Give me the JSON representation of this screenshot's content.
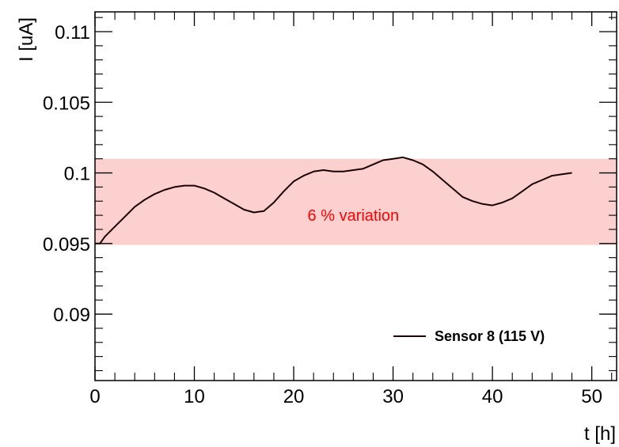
{
  "chart_data": {
    "type": "line",
    "xlabel": "t [h]",
    "ylabel": "I [uA]",
    "xlim": [
      0,
      52.5
    ],
    "ylim": [
      0.0853,
      0.1114
    ],
    "x_ticks": [
      0,
      10,
      20,
      30,
      40,
      50
    ],
    "x_tick_labels": [
      "0",
      "10",
      "20",
      "30",
      "40",
      "50"
    ],
    "y_ticks": [
      0.09,
      0.095,
      0.1,
      0.105,
      0.11
    ],
    "y_tick_labels": [
      "0.09",
      "0.095",
      "0.1",
      "0.105",
      "0.11"
    ],
    "grid": false,
    "legend_position": "lower-right",
    "band": {
      "y_from": 0.0949,
      "y_to": 0.101,
      "color": "#fdd0d0",
      "label": "6 % variation",
      "label_color": "#ff0000",
      "label_x": 26,
      "label_y": 0.097
    },
    "series": [
      {
        "name": "Sensor 8 (115 V)",
        "color": "#1a0000",
        "x": [
          0,
          0.5,
          1,
          2,
          3,
          4,
          5,
          6,
          7,
          8,
          9,
          10,
          11,
          12,
          13,
          14,
          15,
          16,
          17,
          18,
          19,
          20,
          21,
          22,
          23,
          24,
          25,
          26,
          27,
          28,
          29,
          30,
          31,
          32,
          33,
          34,
          35,
          36,
          37,
          38,
          39,
          40,
          41,
          42,
          43,
          44,
          45,
          46,
          47,
          48
        ],
        "y": [
          0.095,
          0.095,
          0.0955,
          0.0962,
          0.0969,
          0.0976,
          0.0981,
          0.0985,
          0.0988,
          0.099,
          0.0991,
          0.0991,
          0.0989,
          0.0986,
          0.0982,
          0.0978,
          0.0974,
          0.0972,
          0.0973,
          0.0979,
          0.0987,
          0.0994,
          0.0998,
          0.1001,
          0.1002,
          0.1001,
          0.1001,
          0.1002,
          0.1003,
          0.1006,
          0.1009,
          0.101,
          0.1011,
          0.1009,
          0.1006,
          0.1001,
          0.0995,
          0.0989,
          0.0983,
          0.098,
          0.0978,
          0.0977,
          0.0979,
          0.0982,
          0.0987,
          0.0992,
          0.0995,
          0.0998,
          0.0999,
          0.1
        ]
      }
    ]
  }
}
